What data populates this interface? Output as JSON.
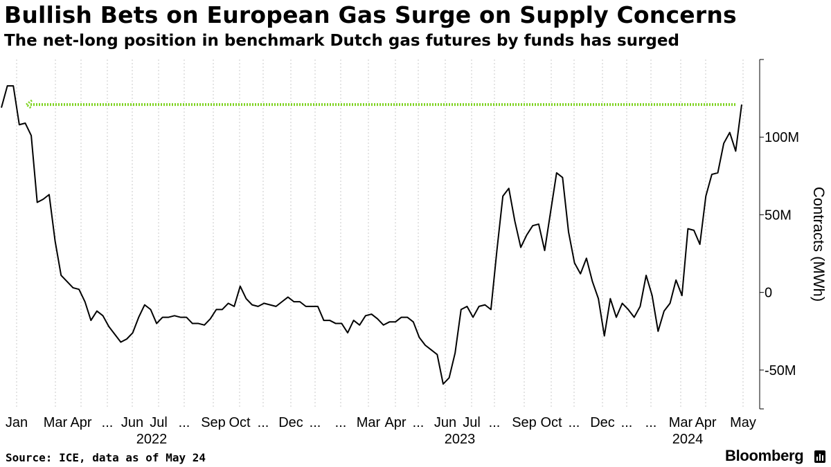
{
  "title": "Bullish Bets on European Gas Surge on Supply Concerns",
  "subtitle": "The net-long position in benchmark Dutch gas futures by funds has surged",
  "source": "Source: ICE, data as of May 24",
  "brand": "Bloomberg",
  "colors": {
    "line": "#000000",
    "reference_line": "#7ed321",
    "grid": "#c8c8c8",
    "axis": "#000000"
  },
  "chart_data": {
    "type": "line",
    "ylabel": "Contracts (MWh)",
    "ylim": [
      -75,
      150
    ],
    "yticks": [
      -50,
      0,
      50,
      100
    ],
    "ytick_labels": [
      "-50M",
      "0",
      "50M",
      "100M"
    ],
    "grid": "vertical dotted",
    "x_month_labels": [
      "Jan",
      "Mar",
      "Apr",
      "...",
      "Jun",
      "Jul",
      "...",
      "Sep",
      "Oct",
      "...",
      "Dec",
      "...",
      "...",
      "Mar",
      "Apr",
      "...",
      "Jun",
      "Jul",
      "...",
      "Sep",
      "Oct",
      "...",
      "Dec",
      "...",
      "...",
      "Mar",
      "Apr",
      "May"
    ],
    "x_year_labels": [
      "2022",
      "2023",
      "2024"
    ],
    "reference_line": {
      "value": 121
    },
    "series": [
      {
        "values": [
          119,
          133,
          133,
          108,
          109,
          101,
          58,
          60,
          63,
          33,
          11,
          7,
          3,
          2,
          -6,
          -18,
          -12,
          -15,
          -22,
          -27,
          -32,
          -30,
          -26,
          -16,
          -8,
          -11,
          -20,
          -16,
          -16,
          -15,
          -16,
          -16,
          -20,
          -20,
          -21,
          -17,
          -11,
          -11,
          -7,
          -9,
          4,
          -4,
          -8,
          -9,
          -7,
          -8,
          -9,
          -6,
          -3,
          -6,
          -6,
          -9,
          -9,
          -9,
          -18,
          -18,
          -20,
          -20,
          -26,
          -18,
          -21,
          -15,
          -14,
          -17,
          -21,
          -19,
          -19,
          -16,
          -16,
          -19,
          -29,
          -34,
          -37,
          -40,
          -59,
          -55,
          -39,
          -11,
          -9,
          -16,
          -9,
          -8,
          -11,
          27,
          62,
          67,
          46,
          29,
          37,
          43,
          44,
          27,
          52,
          77,
          74,
          39,
          19,
          12,
          22,
          7,
          -4,
          -28,
          -4,
          -16,
          -7,
          -11,
          -16,
          -9,
          11,
          -2,
          -25,
          -12,
          -7,
          8,
          -2,
          41,
          40,
          31,
          62,
          76,
          77,
          96,
          103,
          91,
          121
        ]
      }
    ]
  }
}
